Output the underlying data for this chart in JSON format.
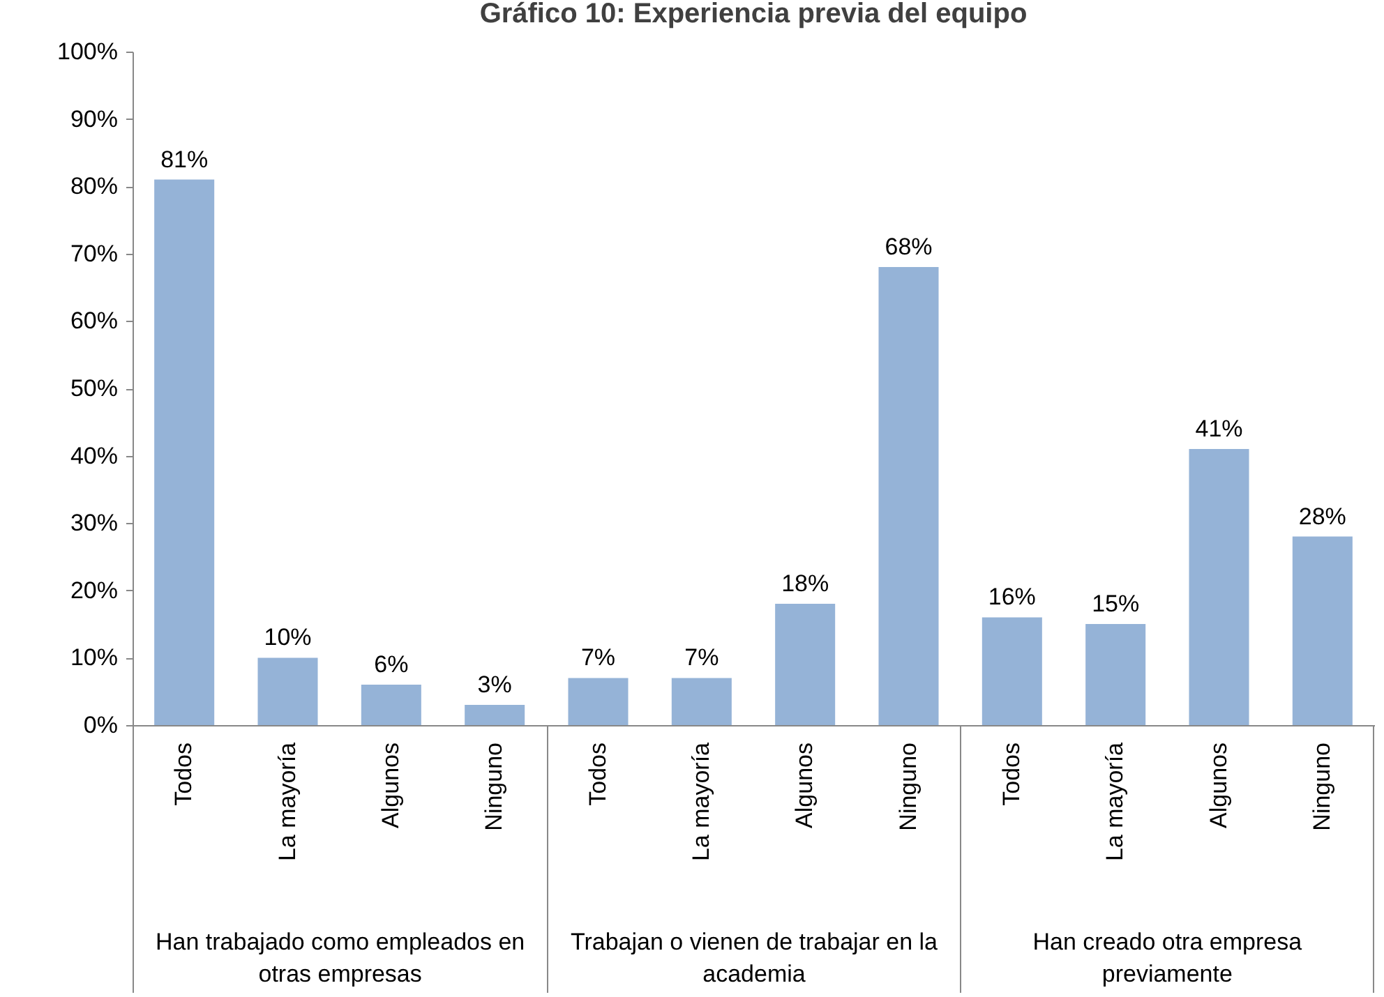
{
  "chart_data": {
    "type": "bar",
    "title": "Gráfico 10: Experiencia previa del equipo",
    "categories": [
      "Todos",
      "La mayoría",
      "Algunos",
      "Ninguno",
      "Todos",
      "La mayoría",
      "Algunos",
      "Ninguno",
      "Todos",
      "La mayoría",
      "Algunos",
      "Ninguno"
    ],
    "values": [
      81,
      10,
      6,
      3,
      7,
      7,
      18,
      68,
      16,
      15,
      41,
      28
    ],
    "value_labels": [
      "81%",
      "10%",
      "6%",
      "3%",
      "7%",
      "7%",
      "18%",
      "68%",
      "16%",
      "15%",
      "41%",
      "28%"
    ],
    "color": "#95b3d7",
    "ylim": [
      0,
      100
    ],
    "yticks": [
      {
        "value": 0,
        "label": "0%"
      },
      {
        "value": 10,
        "label": "10%"
      },
      {
        "value": 20,
        "label": "20%"
      },
      {
        "value": 30,
        "label": "30%"
      },
      {
        "value": 40,
        "label": "40%"
      },
      {
        "value": 50,
        "label": "50%"
      },
      {
        "value": 60,
        "label": "60%"
      },
      {
        "value": 70,
        "label": "70%"
      },
      {
        "value": 80,
        "label": "80%"
      },
      {
        "value": 90,
        "label": "90%"
      },
      {
        "value": 100,
        "label": "100%"
      }
    ],
    "annotations": [
      "Han trabajado como empleados en otras empresas",
      "Trabajan o vienen de trabajar en la academia",
      "Han creado otra empresa previamente"
    ],
    "grid": false
  }
}
